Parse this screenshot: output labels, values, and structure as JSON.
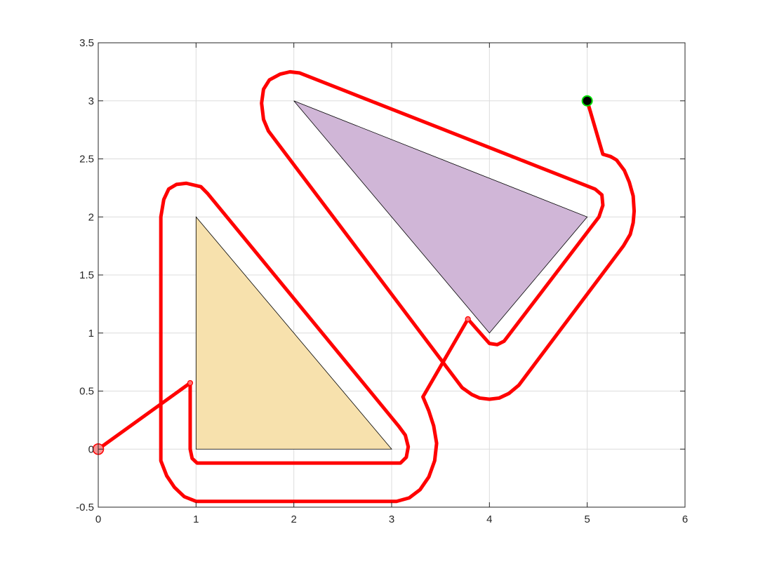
{
  "chart_data": {
    "type": "line",
    "title": "",
    "xlabel": "",
    "ylabel": "",
    "xlim": [
      0,
      6
    ],
    "ylim": [
      -0.5,
      3.5
    ],
    "x_ticks": [
      0,
      1,
      2,
      3,
      4,
      5,
      6
    ],
    "y_ticks": [
      -0.5,
      0,
      0.5,
      1,
      1.5,
      2,
      2.5,
      3,
      3.5
    ],
    "x_tick_labels": [
      "0",
      "1",
      "2",
      "3",
      "4",
      "5",
      "6"
    ],
    "y_tick_labels": [
      "-0.5",
      "0",
      "0.5",
      "1",
      "1.5",
      "2",
      "2.5",
      "3",
      "3.5"
    ],
    "grid": true,
    "box": true,
    "obstacles": [
      {
        "vertices": [
          [
            1,
            0
          ],
          [
            3,
            0
          ],
          [
            1,
            2
          ]
        ],
        "fill": "#f7e1ad",
        "edge": "#000000"
      },
      {
        "vertices": [
          [
            2,
            3
          ],
          [
            5,
            2
          ],
          [
            4,
            1
          ]
        ],
        "fill": "#d0b6d7",
        "edge": "#000000"
      }
    ],
    "path": {
      "color": "#ff0000",
      "points": [
        [
          0,
          0
        ],
        [
          0.94,
          0.57
        ],
        [
          0.94,
          0.0
        ],
        [
          0.96,
          -0.08
        ],
        [
          1.01,
          -0.12
        ],
        [
          3.09,
          -0.12
        ],
        [
          3.15,
          -0.07
        ],
        [
          3.17,
          0.02
        ],
        [
          3.14,
          0.12
        ],
        [
          3.07,
          0.2
        ],
        [
          1.12,
          2.2
        ],
        [
          1.05,
          2.26
        ],
        [
          0.9,
          2.29
        ],
        [
          0.8,
          2.28
        ],
        [
          0.72,
          2.24
        ],
        [
          0.67,
          2.15
        ],
        [
          0.64,
          2.0
        ],
        [
          0.64,
          -0.1
        ],
        [
          0.7,
          -0.23
        ],
        [
          0.78,
          -0.33
        ],
        [
          0.88,
          -0.41
        ],
        [
          1.0,
          -0.45
        ],
        [
          3.05,
          -0.45
        ],
        [
          3.18,
          -0.42
        ],
        [
          3.29,
          -0.35
        ],
        [
          3.38,
          -0.24
        ],
        [
          3.44,
          -0.1
        ],
        [
          3.46,
          0.05
        ],
        [
          3.43,
          0.2
        ],
        [
          3.38,
          0.33
        ],
        [
          3.32,
          0.45
        ],
        [
          3.78,
          1.12
        ],
        [
          4.0,
          0.91
        ],
        [
          4.08,
          0.9
        ],
        [
          4.15,
          0.93
        ],
        [
          5.12,
          2.0
        ],
        [
          5.16,
          2.1
        ],
        [
          5.15,
          2.19
        ],
        [
          5.08,
          2.24
        ],
        [
          2.06,
          3.24
        ],
        [
          1.96,
          3.25
        ],
        [
          1.86,
          3.23
        ],
        [
          1.75,
          3.18
        ],
        [
          1.69,
          3.1
        ],
        [
          1.67,
          2.98
        ],
        [
          1.69,
          2.84
        ],
        [
          1.74,
          2.74
        ],
        [
          3.72,
          0.53
        ],
        [
          3.82,
          0.47
        ],
        [
          3.9,
          0.44
        ],
        [
          4.0,
          0.43
        ],
        [
          4.1,
          0.44
        ],
        [
          4.2,
          0.48
        ],
        [
          4.3,
          0.55
        ],
        [
          5.37,
          1.75
        ],
        [
          5.44,
          1.85
        ],
        [
          5.47,
          1.95
        ],
        [
          5.48,
          2.05
        ],
        [
          5.47,
          2.18
        ],
        [
          5.43,
          2.3
        ],
        [
          5.38,
          2.4
        ],
        [
          5.3,
          2.49
        ],
        [
          5.24,
          2.52
        ],
        [
          5.16,
          2.54
        ],
        [
          5.0,
          3.0
        ]
      ]
    },
    "intermediate_points": [
      [
        0.94,
        0.57
      ],
      [
        3.78,
        1.12
      ]
    ],
    "start": [
      0,
      0
    ],
    "goal": [
      5,
      3
    ]
  }
}
